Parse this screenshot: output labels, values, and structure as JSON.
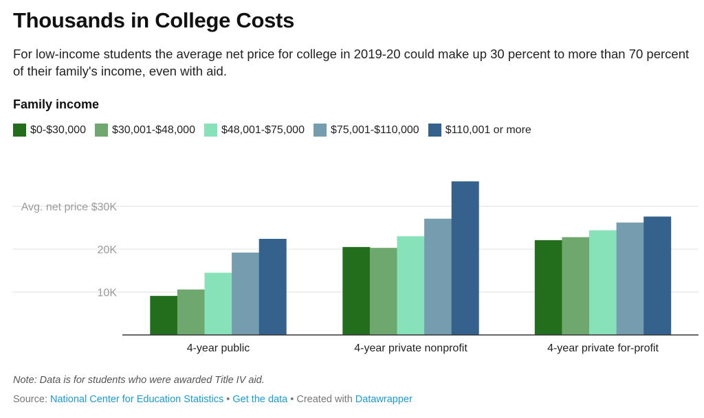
{
  "header": {
    "title": "Thousands in College Costs",
    "subtitle": "For low-income students the average net price for college in 2019-20 could make up 30 percent to more than 70 percent of their family's income, even with aid."
  },
  "legend": {
    "title": "Family income",
    "items": [
      {
        "label": "$0-$30,000",
        "color": "#236e1c"
      },
      {
        "label": "$30,001-$48,000",
        "color": "#6fa86f"
      },
      {
        "label": "$48,001-$75,000",
        "color": "#88e2b9"
      },
      {
        "label": "$75,001-$110,000",
        "color": "#769cb0"
      },
      {
        "label": "$110,001 or more",
        "color": "#34628c"
      }
    ]
  },
  "chart_data": {
    "type": "bar",
    "categories": [
      "4-year public",
      "4-year private nonprofit",
      "4-year private for-profit"
    ],
    "series": [
      {
        "name": "$0-$30,000",
        "color": "#236e1c",
        "values": [
          9100,
          20500,
          22100
        ]
      },
      {
        "name": "$30,001-$48,000",
        "color": "#6fa86f",
        "values": [
          10600,
          20300,
          22800
        ]
      },
      {
        "name": "$48,001-$75,000",
        "color": "#88e2b9",
        "values": [
          14500,
          23000,
          24400
        ]
      },
      {
        "name": "$75,001-$110,000",
        "color": "#769cb0",
        "values": [
          19200,
          27100,
          26200
        ]
      },
      {
        "name": "$110,001 or more",
        "color": "#34628c",
        "values": [
          22400,
          35800,
          27600
        ]
      }
    ],
    "ylim": [
      0,
      36000
    ],
    "yticks": [
      {
        "value": 10000,
        "label": "10K"
      },
      {
        "value": 20000,
        "label": "20K"
      },
      {
        "value": 30000,
        "label": "Avg. net price $30K"
      }
    ],
    "grid": true,
    "legend_position": "top-left"
  },
  "footer": {
    "note": "Note: Data is for students who were awarded Title IV aid.",
    "source_prefix": "Source: ",
    "source_name": "National Center for Education Statistics",
    "separator": " • ",
    "get_data": "Get the data",
    "created_with": "Created with ",
    "datawrapper": "Datawrapper"
  }
}
